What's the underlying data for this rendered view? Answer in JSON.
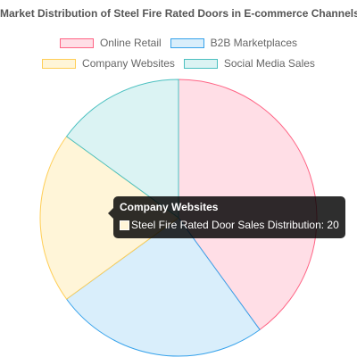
{
  "chart_data": {
    "type": "pie",
    "title": "Market Distribution of Steel Fire Rated Doors in E-commerce Channels",
    "categories": [
      "Online Retail",
      "B2B Marketplaces",
      "Company Websites",
      "Social Media Sales"
    ],
    "series": [
      {
        "name": "Steel Fire Rated Door Sales Distribution",
        "values": [
          40,
          25,
          20,
          15
        ]
      }
    ],
    "legend_position": "top",
    "colors": {
      "fills": [
        "#FFDEE6",
        "#D9EEFB",
        "#FFF5D8",
        "#DBF3F3"
      ],
      "borders": [
        "#FF6384",
        "#36A2EB",
        "#FFCE56",
        "#4BC0C0"
      ]
    }
  },
  "tooltip": {
    "title": "Company Websites",
    "label": "Steel Fire Rated Door Sales Distribution: 20",
    "swatch_color": "#FFF5D8"
  }
}
